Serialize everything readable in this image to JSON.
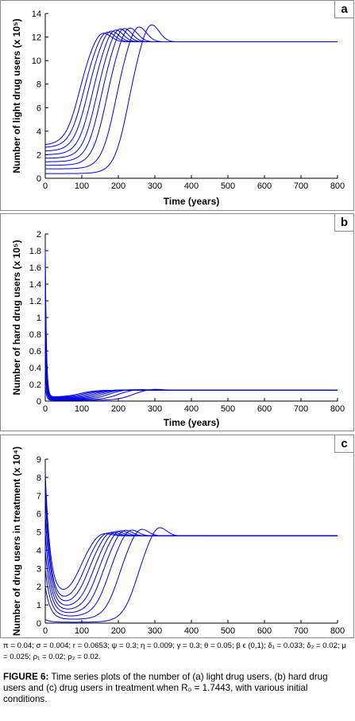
{
  "colors": {
    "curve": "#0000ee",
    "axis": "#000000",
    "border": "#8a8a8a"
  },
  "chart_data": [
    {
      "type": "line",
      "panel_label": "a",
      "xlabel": "Time (years)",
      "ylabel": "Number of light drug users (x 10⁵)",
      "xlim": [
        0,
        800
      ],
      "ylim": [
        0,
        14
      ],
      "xticks": [
        "0",
        "100",
        "200",
        "300",
        "400",
        "500",
        "600",
        "700",
        "800"
      ],
      "yticks": [
        "0",
        "2",
        "4",
        "6",
        "8",
        "10",
        "12",
        "14"
      ],
      "x_end": 800,
      "steady_state": 11.6,
      "initial_values": [
        0.4,
        0.8,
        1.1,
        1.4,
        1.7,
        2.0,
        2.3,
        2.6,
        2.8
      ],
      "rise_midpoints": [
        225,
        190,
        165,
        150,
        138,
        126,
        114,
        103,
        92
      ],
      "peak_values": [
        13.4,
        13.2,
        13.1,
        13.05,
        13.0,
        12.9,
        12.8,
        12.7,
        12.6
      ]
    },
    {
      "type": "line",
      "panel_label": "b",
      "xlabel": "Time (years)",
      "ylabel": "Number of hard drug users (x 10⁵)",
      "xlim": [
        0,
        800
      ],
      "ylim": [
        0,
        2
      ],
      "xticks": [
        "0",
        "100",
        "200",
        "300",
        "400",
        "500",
        "600",
        "700",
        "800"
      ],
      "yticks": [
        "0",
        "0.2",
        "0.4",
        "0.6",
        "0.8",
        "1",
        "1.2",
        "1.4",
        "1.6",
        "1.8",
        "2"
      ],
      "x_end": 800,
      "steady_state": 0.13,
      "initial_values": [
        0.2,
        0.4,
        0.6,
        0.8,
        1.0,
        1.2,
        1.4,
        1.6,
        1.8
      ],
      "dip_values": [
        0.01,
        0.015,
        0.02,
        0.025,
        0.03,
        0.035,
        0.04,
        0.045,
        0.05
      ],
      "rise_midpoints": [
        235,
        195,
        170,
        155,
        142,
        130,
        118,
        106,
        95
      ],
      "peak_values": [
        0.145,
        0.142,
        0.14,
        0.138,
        0.136,
        0.134,
        0.132,
        0.131,
        0.13
      ]
    },
    {
      "type": "line",
      "panel_label": "c",
      "xlabel": "Time (years)",
      "ylabel": "Number of drug users in treatment (x 10⁴)",
      "xlim": [
        0,
        800
      ],
      "ylim": [
        0,
        9
      ],
      "xticks": [
        "0",
        "100",
        "200",
        "300",
        "400",
        "500",
        "600",
        "700",
        "800"
      ],
      "yticks": [
        "0",
        "1",
        "2",
        "3",
        "4",
        "5",
        "6",
        "7",
        "8",
        "9"
      ],
      "x_end": 800,
      "steady_state": 4.8,
      "initial_values": [
        0.2,
        2.0,
        3.0,
        4.0,
        5.0,
        6.0,
        7.0,
        7.5,
        8.2
      ],
      "trough_values": [
        0.05,
        0.2,
        0.35,
        0.5,
        0.65,
        0.8,
        0.95,
        1.1,
        1.35
      ],
      "rise_midpoints": [
        250,
        200,
        172,
        155,
        142,
        130,
        118,
        107,
        96
      ],
      "peak_values": [
        5.45,
        5.35,
        5.3,
        5.28,
        5.25,
        5.2,
        5.15,
        5.1,
        5.05
      ]
    }
  ],
  "params_text": "π = 0.04; σ = 0.004; r = 0.0653; ψ = 0.3; η = 0.009; γ = 0.3; θ = 0.05; β ϵ (0,1); δ₁ = 0.033; δ₂ = 0.02; μ = 0.025; ρ₁ = 0.02; ρ₂ = 0.02.",
  "caption": {
    "label": "FIGURE 6:",
    "text": " Time series plots of the number of (a) light drug users, (b) hard drug users and (c) drug users in treatment when R₀ = 1.7443, with various initial conditions."
  }
}
